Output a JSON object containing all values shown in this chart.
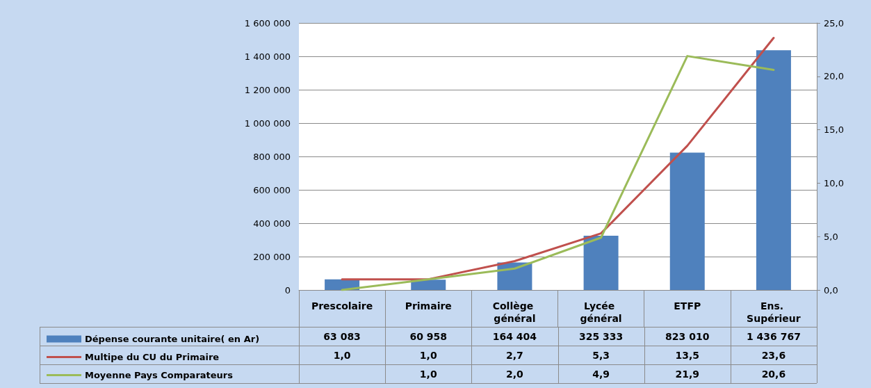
{
  "chart_data": {
    "type": "bar",
    "categories": [
      "Prescolaire",
      "Primaire",
      "Collège général",
      "Lycée général",
      "ETFP",
      "Ens. Supérieur"
    ],
    "series": [
      {
        "name": "Dépense courante unitaire( en Ar)",
        "color": "#4f81bd",
        "values": [
          63083,
          60958,
          164404,
          325333,
          823010,
          1436767
        ],
        "value_labels": [
          "63 083",
          "60 958",
          "164 404",
          "325 333",
          "823 010",
          "1 436 767"
        ]
      },
      {
        "name": "Multipe du CU du Primaire",
        "type": "line",
        "axis": "y2",
        "color": "#c0504d",
        "values": [
          1.0,
          1.0,
          2.7,
          5.3,
          13.5,
          23.6
        ],
        "value_labels": [
          "1,0",
          "1,0",
          "2,7",
          "5,3",
          "13,5",
          "23,6"
        ]
      },
      {
        "name": "Moyenne Pays Comparateurs",
        "type": "line",
        "axis": "y2",
        "color": "#9bbb59",
        "values": [
          0,
          1.0,
          2.0,
          4.9,
          21.9,
          20.6
        ],
        "value_labels": [
          null,
          "1,0",
          "2,0",
          "4,9",
          "21,9",
          "20,6"
        ]
      }
    ],
    "ylim": [
      0,
      1600000
    ],
    "yticks": [
      {
        "value": 0,
        "label": "0"
      },
      {
        "value": 200000,
        "label": "200 000"
      },
      {
        "value": 400000,
        "label": "400 000"
      },
      {
        "value": 600000,
        "label": "600 000"
      },
      {
        "value": 800000,
        "label": "800 000"
      },
      {
        "value": 1000000,
        "label": "1 000 000"
      },
      {
        "value": 1200000,
        "label": "1 200 000"
      },
      {
        "value": 1400000,
        "label": "1 400 000"
      },
      {
        "value": 1600000,
        "label": "1 600 000"
      }
    ],
    "y2lim": [
      0,
      25
    ],
    "y2ticks": [
      {
        "value": 0,
        "label": "0,0"
      },
      {
        "value": 5,
        "label": "5,0"
      },
      {
        "value": 10,
        "label": "10,0"
      },
      {
        "value": 15,
        "label": "15,0"
      },
      {
        "value": 20,
        "label": "20,0"
      },
      {
        "value": 25,
        "label": "25,0"
      }
    ],
    "grid": "y",
    "legend": "bottom left",
    "marker": "none",
    "line_style": "solid"
  }
}
